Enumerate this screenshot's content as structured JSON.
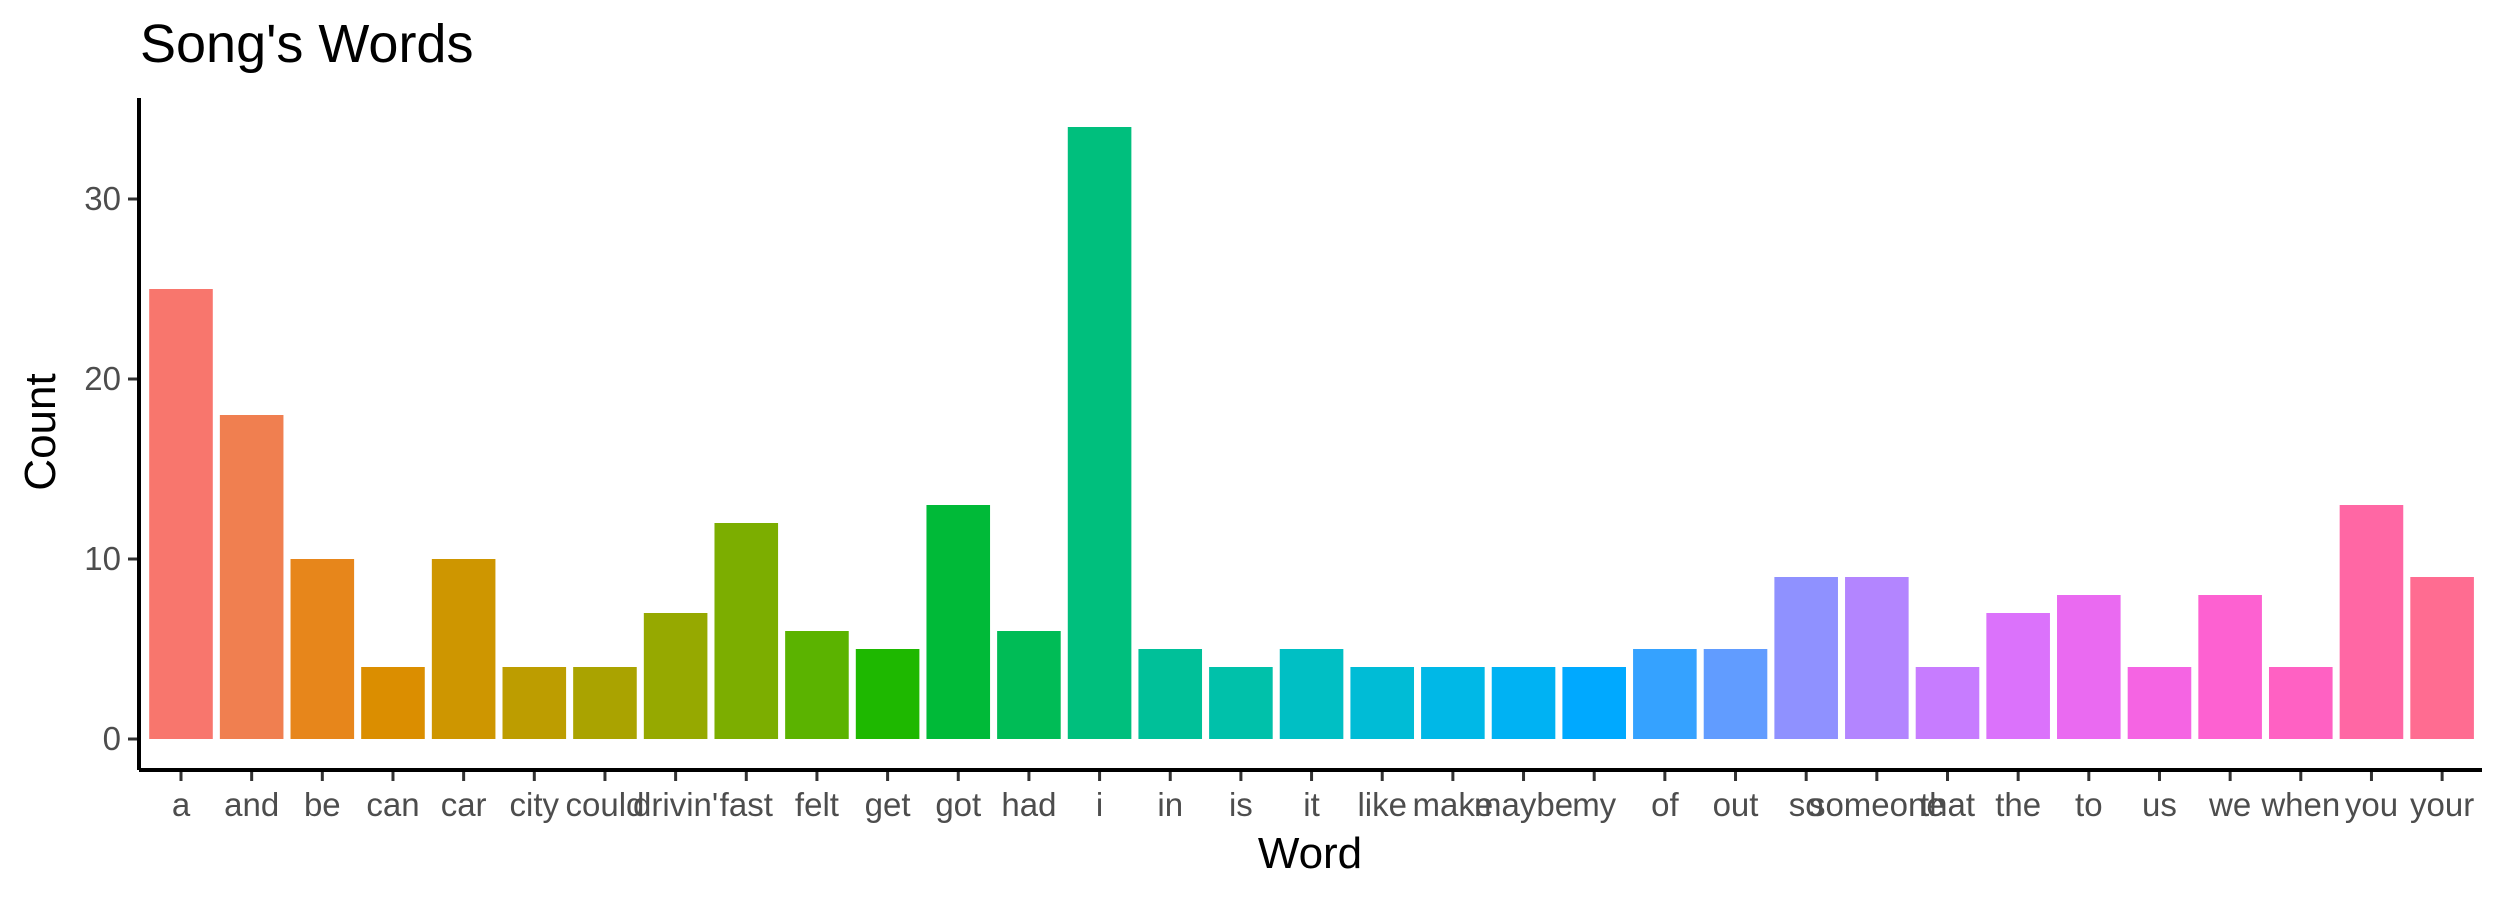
{
  "chart_data": {
    "type": "bar",
    "title": "Song's Words",
    "xlabel": "Word",
    "ylabel": "Count",
    "categories": [
      "a",
      "and",
      "be",
      "can",
      "car",
      "city",
      "could",
      "drivin'",
      "fast",
      "felt",
      "get",
      "got",
      "had",
      "i",
      "in",
      "is",
      "it",
      "like",
      "make",
      "maybe",
      "my",
      "of",
      "out",
      "so",
      "someone",
      "that",
      "the",
      "to",
      "us",
      "we",
      "when",
      "you",
      "your"
    ],
    "values": [
      25,
      18,
      10,
      4,
      10,
      4,
      4,
      7,
      12,
      6,
      5,
      13,
      6,
      34,
      5,
      4,
      5,
      4,
      4,
      4,
      4,
      5,
      5,
      9,
      9,
      4,
      7,
      8,
      4,
      8,
      4,
      13,
      9
    ],
    "colors": [
      "#F8766D",
      "#F07F50",
      "#E7861B",
      "#DB8E00",
      "#CE9600",
      "#BD9D00",
      "#AAA300",
      "#96A900",
      "#7CAE00",
      "#5BB300",
      "#1EB800",
      "#00BA38",
      "#00BC56",
      "#00BF7D",
      "#00C099",
      "#00C1AA",
      "#00BFC4",
      "#00BCD6",
      "#00B8E7",
      "#00B2F3",
      "#00A9FF",
      "#35A2FF",
      "#619CFF",
      "#8F91FF",
      "#B385FF",
      "#C77CFF",
      "#DB72FB",
      "#EA6AF1",
      "#F564E3",
      "#FD61D1",
      "#FF61C3",
      "#FF67A4",
      "#FF6C91"
    ],
    "yticks": [
      0,
      10,
      20,
      30
    ],
    "ylim": [
      0,
      35.7
    ],
    "grid": false,
    "legend": "none"
  }
}
